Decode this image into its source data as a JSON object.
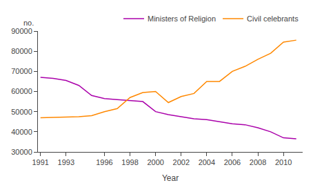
{
  "chart_data": {
    "type": "line",
    "xlabel": "Year",
    "ylabel": "no.",
    "x": [
      1991,
      1992,
      1993,
      1994,
      1995,
      1996,
      1997,
      1998,
      1999,
      2000,
      2001,
      2002,
      2003,
      2004,
      2005,
      2006,
      2007,
      2008,
      2009,
      2010,
      2011
    ],
    "series": [
      {
        "name": "Ministers of Religion",
        "color": "#aa00aa",
        "values": [
          67000,
          66500,
          65500,
          63000,
          58000,
          56500,
          56000,
          55500,
          55000,
          50000,
          48500,
          47500,
          46500,
          46000,
          45000,
          44000,
          43500,
          42000,
          40000,
          37000,
          36500
        ]
      },
      {
        "name": "Civil celebrants",
        "color": "#ff8800",
        "values": [
          47000,
          47200,
          47500,
          47500,
          48000,
          50000,
          51500,
          57000,
          59500,
          60000,
          54500,
          57500,
          59000,
          65000,
          65000,
          70000,
          72500,
          76000,
          79000,
          84500,
          85500
        ]
      }
    ],
    "xlim": [
      1990.8,
      2011.5
    ],
    "xticks": [
      1991,
      1993,
      1996,
      1998,
      2000,
      2002,
      2004,
      2006,
      2008,
      2010
    ],
    "ylim": [
      30000,
      90000
    ],
    "yticks": [
      30000,
      40000,
      50000,
      60000,
      70000,
      80000,
      90000
    ],
    "grid": false,
    "legend": "upper right"
  }
}
